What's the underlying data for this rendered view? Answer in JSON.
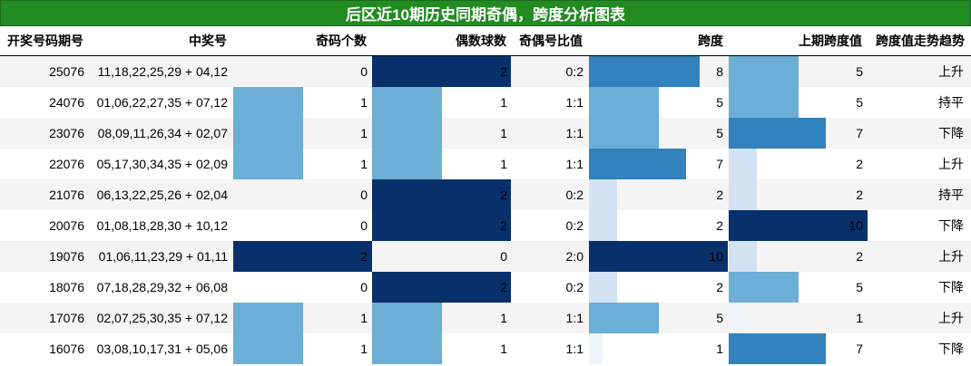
{
  "chart_data": {
    "type": "table",
    "title": "后区近10期历史同期奇偶，跨度分析图表",
    "columns": [
      "开奖号码期号",
      "中奖号",
      "奇码个数",
      "偶数球数",
      "奇偶号比值",
      "跨度",
      "上期跨度值",
      "跨度值走势趋势"
    ],
    "rows": [
      {
        "issue": "25076",
        "numbers": "11,18,22,25,29 + 04,12",
        "odd": 0,
        "even": 2,
        "ratio": "0:2",
        "span": 8,
        "prev_span": 5,
        "trend": "上升"
      },
      {
        "issue": "24076",
        "numbers": "01,06,22,27,35 + 07,12",
        "odd": 1,
        "even": 1,
        "ratio": "1:1",
        "span": 5,
        "prev_span": 5,
        "trend": "持平"
      },
      {
        "issue": "23076",
        "numbers": "08,09,11,26,34 + 02,07",
        "odd": 1,
        "even": 1,
        "ratio": "1:1",
        "span": 5,
        "prev_span": 7,
        "trend": "下降"
      },
      {
        "issue": "22076",
        "numbers": "05,17,30,34,35 + 02,09",
        "odd": 1,
        "even": 1,
        "ratio": "1:1",
        "span": 7,
        "prev_span": 2,
        "trend": "上升"
      },
      {
        "issue": "21076",
        "numbers": "06,13,22,25,26 + 02,04",
        "odd": 0,
        "even": 2,
        "ratio": "0:2",
        "span": 2,
        "prev_span": 2,
        "trend": "持平"
      },
      {
        "issue": "20076",
        "numbers": "01,08,18,28,30 + 10,12",
        "odd": 0,
        "even": 2,
        "ratio": "0:2",
        "span": 2,
        "prev_span": 10,
        "trend": "下降"
      },
      {
        "issue": "19076",
        "numbers": "01,06,11,23,29 + 01,11",
        "odd": 2,
        "even": 0,
        "ratio": "2:0",
        "span": 10,
        "prev_span": 2,
        "trend": "上升"
      },
      {
        "issue": "18076",
        "numbers": "07,18,28,29,32 + 06,08",
        "odd": 0,
        "even": 2,
        "ratio": "0:2",
        "span": 2,
        "prev_span": 5,
        "trend": "下降"
      },
      {
        "issue": "17076",
        "numbers": "02,07,25,30,35 + 07,12",
        "odd": 1,
        "even": 1,
        "ratio": "1:1",
        "span": 5,
        "prev_span": 1,
        "trend": "上升"
      },
      {
        "issue": "16076",
        "numbers": "03,08,10,17,31 + 05,06",
        "odd": 1,
        "even": 1,
        "ratio": "1:1",
        "span": 1,
        "prev_span": 7,
        "trend": "下降"
      }
    ],
    "odd_even_max": 2,
    "span_max": 10,
    "colors": {
      "title_bg": "#228b22",
      "bar_full": "#08306b",
      "bar_half": "#6baed6",
      "span_scale": [
        "#eef4fb",
        "#d2e2f3",
        "#6baed6",
        "#3182bd",
        "#08306b"
      ]
    }
  }
}
